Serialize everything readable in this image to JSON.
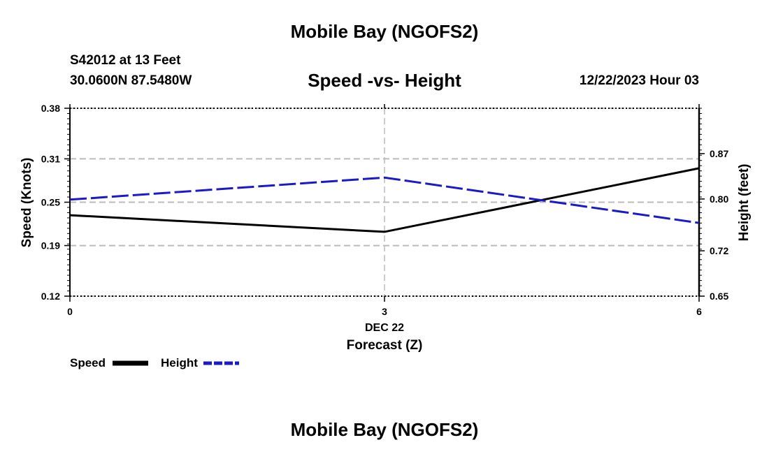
{
  "page": {
    "title": "Mobile Bay (NGOFS2)",
    "station": "S42012 at 13 Feet",
    "coords": "30.0600N  87.5480W",
    "chart_title": "Speed -vs- Height",
    "date": "12/22/2023 Hour 03",
    "footer_title": "Mobile Bay (NGOFS2)"
  },
  "chart_data": {
    "type": "line",
    "title": "Speed -vs- Height",
    "xlabel": "Forecast (Z)",
    "x_sub_label": "DEC 22",
    "x": [
      0,
      3,
      6
    ],
    "x_ticks": [
      0,
      3,
      6
    ],
    "x_tick_labels": [
      "0",
      "3",
      "6"
    ],
    "xlim": [
      0,
      6
    ],
    "ylabel_left": "Speed (Knots)",
    "ylabel_right": "Height (feet)",
    "ylim_left": [
      0.12,
      0.38
    ],
    "ylim_right": [
      0.65,
      0.94
    ],
    "y_left_ticks": [
      0.12,
      0.19,
      0.25,
      0.31,
      0.38
    ],
    "y_left_tick_labels": [
      "0.12",
      "0.19",
      "0.25",
      "0.31",
      "0.38"
    ],
    "y_right_ticks": [
      0.65,
      0.72,
      0.8,
      0.87
    ],
    "y_right_tick_labels": [
      "0.65",
      "0.72",
      "0.80",
      "0.87"
    ],
    "grid": true,
    "series": [
      {
        "name": "Speed",
        "axis": "left",
        "color": "#000000",
        "dashed": false,
        "values": [
          0.232,
          0.209,
          0.297
        ]
      },
      {
        "name": "Height",
        "axis": "right",
        "color": "#1a1ac8",
        "dashed": true,
        "values": [
          0.799,
          0.833,
          0.763
        ]
      }
    ],
    "legend": [
      "Speed",
      "Height"
    ]
  }
}
